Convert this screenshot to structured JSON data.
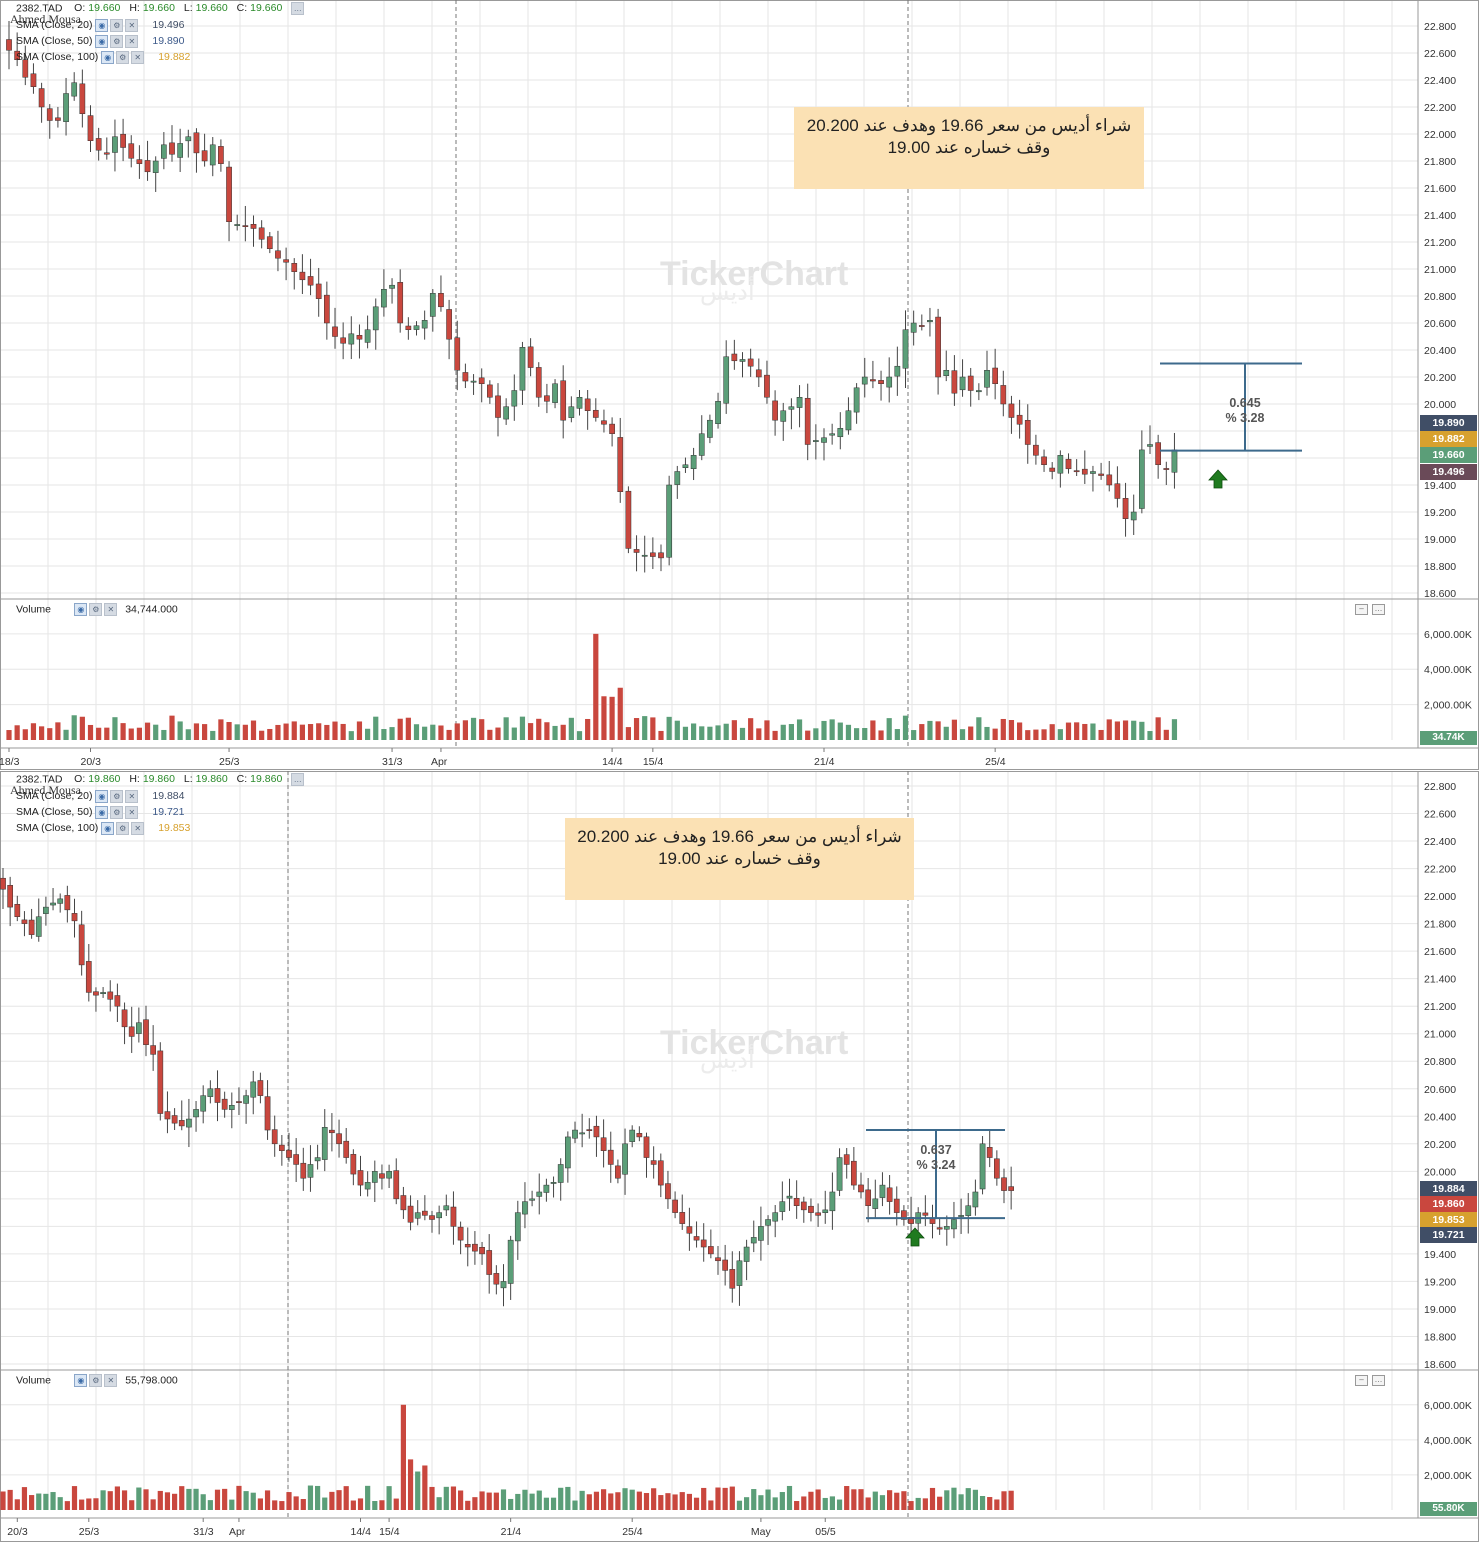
{
  "colors": {
    "up": "#5b9e78",
    "down": "#c9473e",
    "grid": "#e6e6e6",
    "annotation": "#3d6a8c",
    "note_bg": "#fbe1b4",
    "arrow": "#1f7a1f",
    "sma20": "#404e66",
    "sma50": "#3d5a8a",
    "sma100": "#d7a12e",
    "close": "#c9473e"
  },
  "icons": [
    "eye-icon",
    "gear-icon",
    "close-icon",
    "arrow-up-icon",
    "minimize-icon",
    "menu-icon"
  ],
  "watermark": "TickerChart",
  "watermark_ar": "أديس",
  "author": "Ahmed Mousa",
  "panels": [
    {
      "id": "top",
      "symbol": "2382.TAD",
      "ohlc": {
        "O": "19.660",
        "H": "19.660",
        "L": "19.660",
        "C": "19.660"
      },
      "sma": [
        {
          "label": "SMA  (Close, 20)",
          "value": "19.496"
        },
        {
          "label": "SMA  (Close, 50)",
          "value": "19.890"
        },
        {
          "label": "SMA  (Close, 100)",
          "value": "19.882"
        }
      ],
      "note": {
        "line1": "شراء أديس من سعر 19.66 وهدف عند 20.200",
        "line2": "وقف خساره عند 19.00"
      },
      "measure": {
        "diff": "0.645",
        "pct": "% 3.28"
      },
      "volume_label": "Volume",
      "volume_value": "34,744.000",
      "volume_tag": "34.74K",
      "price_tags": [
        {
          "text": "19.890",
          "color": "#404e66",
          "price": 19.86
        },
        {
          "text": "19.882",
          "color": "#d7a12e",
          "price": 19.74
        },
        {
          "text": "19.660",
          "color": "#5b9e78",
          "price": 19.62
        },
        {
          "text": "19.496",
          "color": "#6a4a58",
          "price": 19.5
        }
      ],
      "x_labels": [
        {
          "t": "18/3",
          "i": 0
        },
        {
          "t": "20/3",
          "i": 10
        },
        {
          "t": "25/3",
          "i": 27
        },
        {
          "t": "31/3",
          "i": 47
        },
        {
          "t": "Apr",
          "i": 53
        },
        {
          "t": "14/4",
          "i": 74
        },
        {
          "t": "15/4",
          "i": 79
        },
        {
          "t": "21/4",
          "i": 100
        },
        {
          "t": "25/4",
          "i": 121
        }
      ]
    },
    {
      "id": "bot",
      "symbol": "2382.TAD",
      "ohlc": {
        "O": "19.860",
        "H": "19.860",
        "L": "19.860",
        "C": "19.860"
      },
      "sma": [
        {
          "label": "SMA  (Close, 20)",
          "value": "19.884"
        },
        {
          "label": "SMA  (Close, 50)",
          "value": "19.721"
        },
        {
          "label": "SMA  (Close, 100)",
          "value": "19.853"
        }
      ],
      "note": {
        "line1": "شراء أديس من سعر 19.66 وهدف عند 20.200",
        "line2": "وقف خساره عند 19.00"
      },
      "measure": {
        "diff": "0.637",
        "pct": "% 3.24"
      },
      "volume_label": "Volume",
      "volume_value": "55,798.000",
      "volume_tag": "55.80K",
      "price_tags": [
        {
          "text": "19.884",
          "color": "#404e66",
          "price": 19.87
        },
        {
          "text": "19.860",
          "color": "#c9473e",
          "price": 19.76
        },
        {
          "text": "19.853",
          "color": "#d7a12e",
          "price": 19.65
        },
        {
          "text": "19.721",
          "color": "#404e66",
          "price": 19.54
        }
      ],
      "x_labels": [
        {
          "t": "20/3",
          "i": 2
        },
        {
          "t": "25/3",
          "i": 12
        },
        {
          "t": "31/3",
          "i": 28
        },
        {
          "t": "Apr",
          "i": 33
        },
        {
          "t": "14/4",
          "i": 50
        },
        {
          "t": "15/4",
          "i": 54
        },
        {
          "t": "21/4",
          "i": 71
        },
        {
          "t": "25/4",
          "i": 88
        },
        {
          "t": "May",
          "i": 106
        },
        {
          "t": "05/5",
          "i": 115
        }
      ]
    }
  ],
  "chart_data": {
    "type": "candlestick",
    "symbol": "2382.TAD",
    "y_ticks": [
      "22.800",
      "22.600",
      "22.400",
      "22.200",
      "22.000",
      "21.800",
      "21.600",
      "21.400",
      "21.200",
      "21.000",
      "20.800",
      "20.600",
      "20.400",
      "20.200",
      "20.000",
      "19.800",
      "19.600",
      "19.400",
      "19.200",
      "19.000",
      "18.800",
      "18.600"
    ],
    "ylim": [
      18.6,
      22.8
    ],
    "volume_ticks": [
      "6,000.00K",
      "4,000.00K",
      "2,000.00K"
    ],
    "top_closes": [
      22.62,
      22.55,
      22.42,
      22.35,
      22.2,
      22.1,
      22.1,
      22.3,
      22.38,
      22.15,
      21.95,
      21.88,
      21.85,
      21.98,
      21.9,
      21.82,
      21.78,
      21.72,
      21.8,
      21.92,
      21.85,
      21.93,
      21.98,
      21.86,
      21.8,
      21.92,
      21.78,
      21.35,
      21.33,
      21.32,
      21.3,
      21.22,
      21.15,
      21.08,
      21.05,
      20.98,
      20.92,
      20.88,
      20.78,
      20.6,
      20.5,
      20.45,
      20.52,
      20.48,
      20.55,
      20.72,
      20.85,
      20.88,
      20.6,
      20.55,
      20.58,
      20.62,
      20.82,
      20.72,
      20.48,
      20.25,
      20.17,
      20.17,
      20.15,
      20.05,
      19.9,
      19.98,
      20.1,
      20.42,
      20.27,
      20.05,
      20.02,
      20.15,
      19.88,
      19.98,
      20.05,
      19.95,
      19.9,
      19.85,
      19.78,
      19.35,
      18.93,
      18.9,
      18.88,
      18.87,
      18.86,
      19.4,
      19.5,
      19.55,
      19.62,
      19.78,
      19.88,
      20.02,
      20.35,
      20.32,
      20.33,
      20.28,
      20.2,
      20.05,
      19.88,
      19.95,
      19.98,
      20.05,
      19.7,
      19.73,
      19.75,
      19.78,
      19.82,
      19.95,
      20.12,
      20.2,
      20.17,
      20.15,
      20.2,
      20.28,
      20.55,
      20.6,
      20.58,
      20.62,
      20.2,
      20.25,
      20.08,
      20.2,
      20.1,
      20.1,
      20.25,
      20.15,
      20.0,
      19.9,
      19.85,
      19.7,
      19.62,
      19.55,
      19.5,
      19.62,
      19.52,
      19.5,
      19.48,
      19.5,
      19.47,
      19.4,
      19.3,
      19.15,
      19.2,
      19.66,
      19.7,
      19.55,
      19.52,
      19.66
    ],
    "bot_closes": [
      22.05,
      21.92,
      21.85,
      21.8,
      21.72,
      21.85,
      21.92,
      21.95,
      21.98,
      21.9,
      21.82,
      21.5,
      21.3,
      21.28,
      21.3,
      21.25,
      21.2,
      21.05,
      20.98,
      21.08,
      20.92,
      20.85,
      20.42,
      20.38,
      20.35,
      20.33,
      20.38,
      20.45,
      20.55,
      20.6,
      20.5,
      20.45,
      20.48,
      20.5,
      20.55,
      20.65,
      20.55,
      20.3,
      20.2,
      20.15,
      20.1,
      20.05,
      19.95,
      20.05,
      20.1,
      20.32,
      20.28,
      20.2,
      20.1,
      19.98,
      19.9,
      19.92,
      20.0,
      19.95,
      20.0,
      19.8,
      19.72,
      19.63,
      19.7,
      19.68,
      19.65,
      19.7,
      19.75,
      19.6,
      19.5,
      19.45,
      19.42,
      19.4,
      19.25,
      19.18,
      19.2,
      19.5,
      19.7,
      19.78,
      19.8,
      19.85,
      19.9,
      19.92,
      20.05,
      20.25,
      20.3,
      20.28,
      20.3,
      20.25,
      20.15,
      20.05,
      19.95,
      20.2,
      20.3,
      20.25,
      20.1,
      20.05,
      19.9,
      19.8,
      19.7,
      19.62,
      19.55,
      19.5,
      19.45,
      19.4,
      19.35,
      19.28,
      19.15,
      19.35,
      19.45,
      19.52,
      19.6,
      19.65,
      19.7,
      19.78,
      19.82,
      19.75,
      19.72,
      19.7,
      19.68,
      19.72,
      19.85,
      20.1,
      20.05,
      19.9,
      19.85,
      19.75,
      19.8,
      19.9,
      19.78,
      19.7,
      19.65,
      19.62,
      19.7,
      19.68,
      19.62,
      19.58,
      19.6,
      19.65,
      19.68,
      19.75,
      19.85,
      20.2,
      20.1,
      19.95,
      19.86,
      19.86
    ],
    "annotation": {
      "entry": 19.66,
      "target": 20.2,
      "stop": 19.0
    }
  }
}
